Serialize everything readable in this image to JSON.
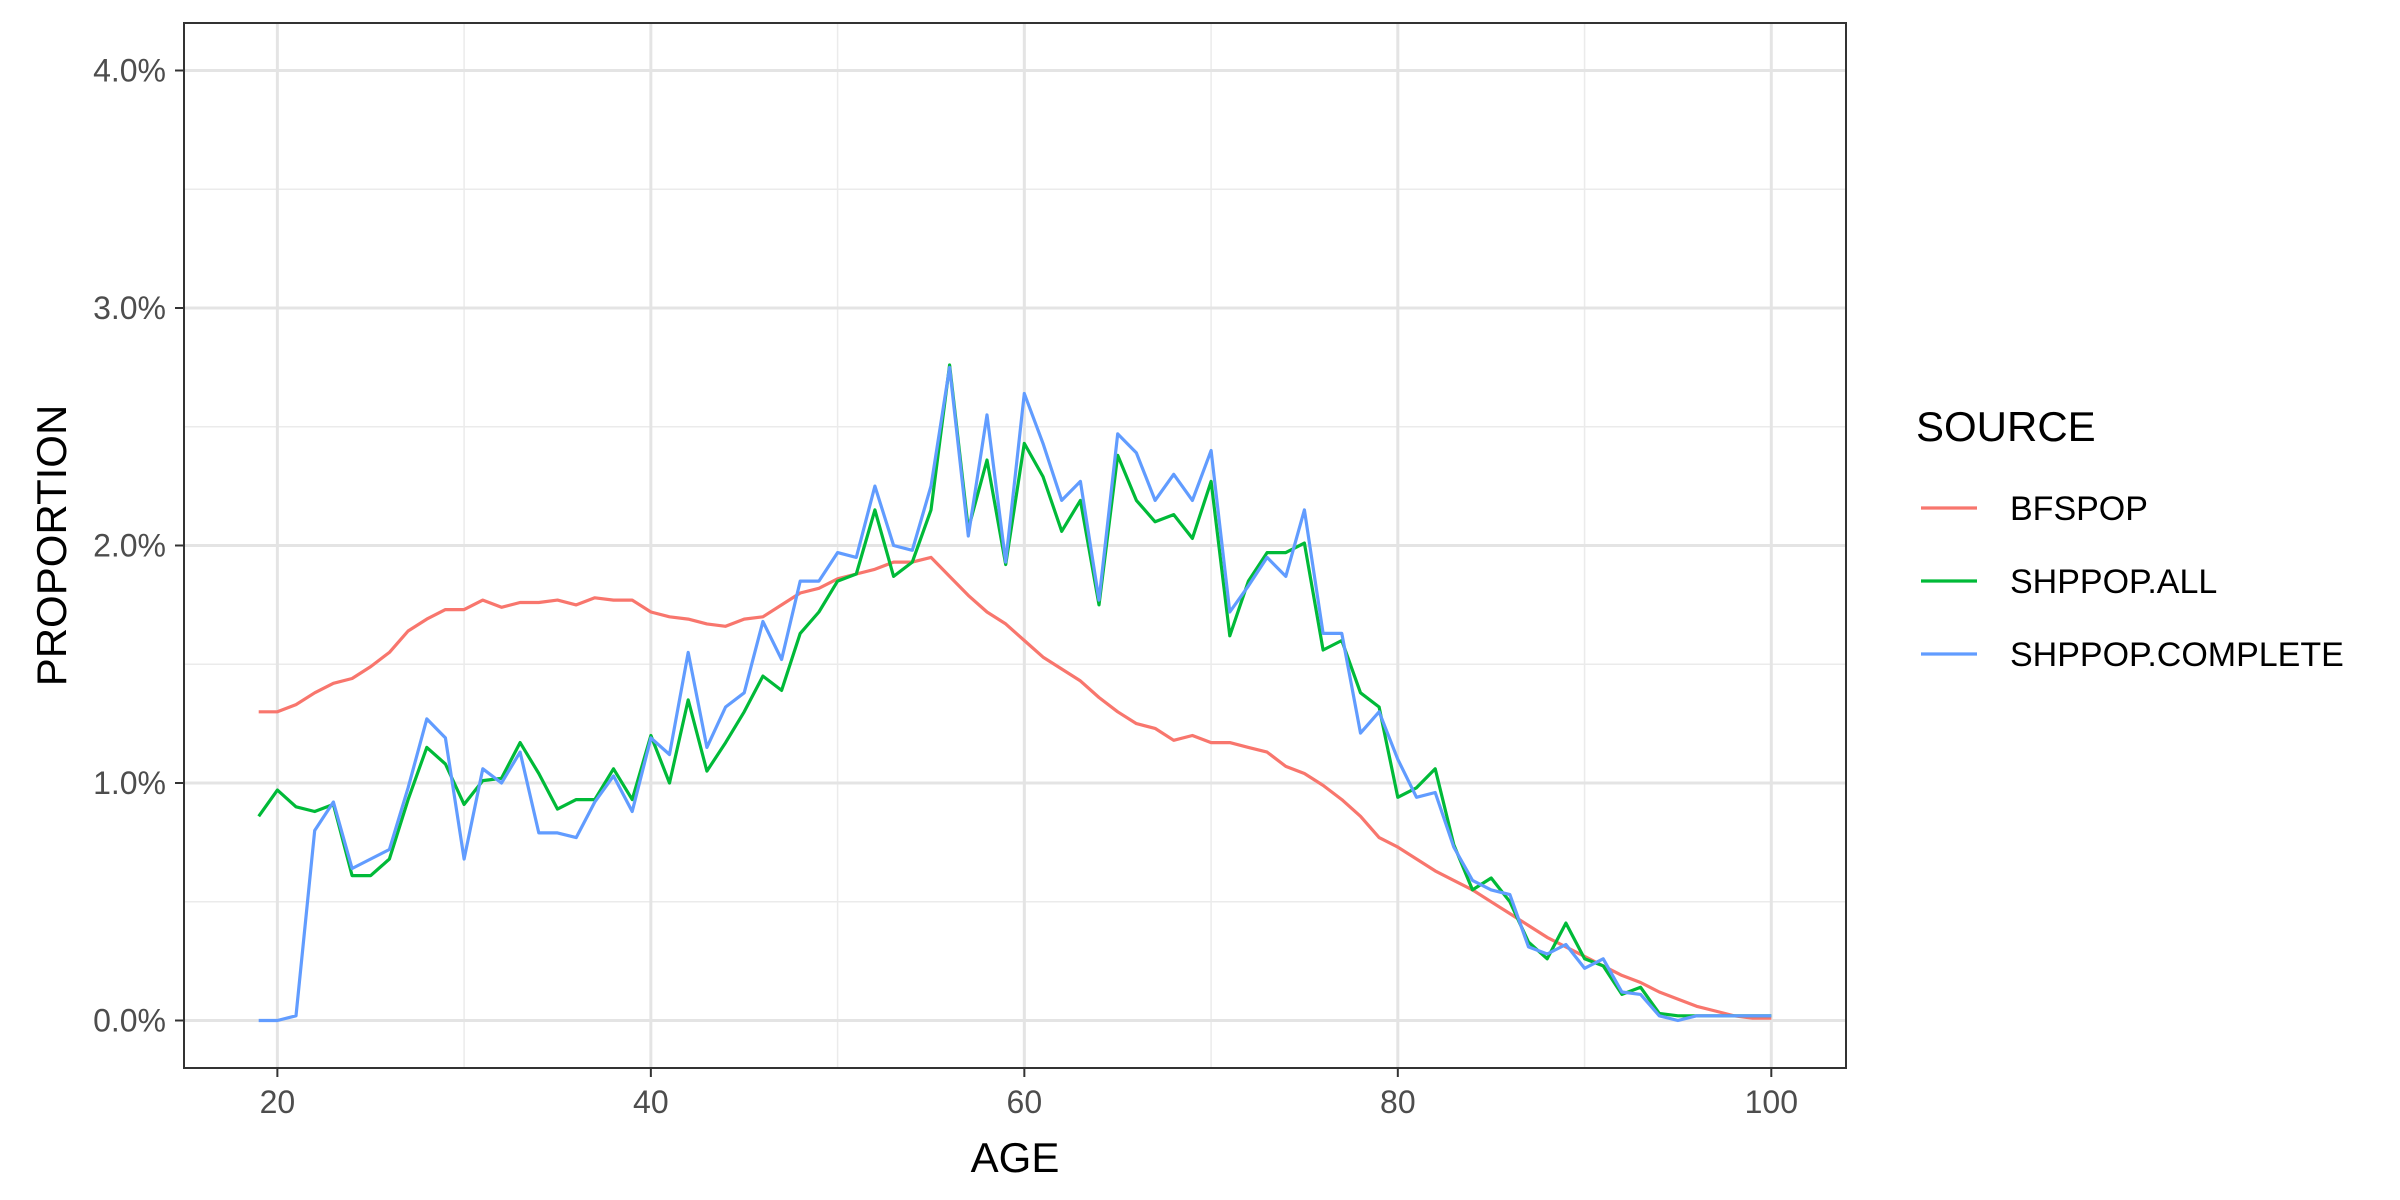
{
  "chart_data": {
    "type": "line",
    "xlabel": "AGE",
    "ylabel": "PROPORTION",
    "xlim": [
      15,
      104
    ],
    "ylim": [
      -0.2,
      4.2
    ],
    "x_ticks": [
      20,
      40,
      60,
      80,
      100
    ],
    "x_tick_labels": [
      "20",
      "40",
      "60",
      "80",
      "100"
    ],
    "y_ticks": [
      0,
      1,
      2,
      3,
      4
    ],
    "y_tick_labels": [
      "0.0%",
      "1.0%",
      "2.0%",
      "3.0%",
      "4.0%"
    ],
    "y_unit": "percent",
    "grid": true,
    "legend": {
      "title": "SOURCE",
      "position": "right"
    },
    "series": [
      {
        "name": "BFSPOP",
        "color": "#F8766D",
        "x": [
          19,
          20,
          21,
          22,
          23,
          24,
          25,
          26,
          27,
          28,
          29,
          30,
          31,
          32,
          33,
          34,
          35,
          36,
          37,
          38,
          39,
          40,
          41,
          42,
          43,
          44,
          45,
          46,
          47,
          48,
          49,
          50,
          51,
          52,
          53,
          54,
          55,
          56,
          57,
          58,
          59,
          60,
          61,
          62,
          63,
          64,
          65,
          66,
          67,
          68,
          69,
          70,
          71,
          72,
          73,
          74,
          75,
          76,
          77,
          78,
          79,
          80,
          81,
          82,
          83,
          84,
          85,
          86,
          87,
          88,
          89,
          90,
          91,
          92,
          93,
          94,
          95,
          96,
          97,
          98,
          99,
          100
        ],
        "values": [
          1.3,
          1.3,
          1.33,
          1.38,
          1.42,
          1.44,
          1.49,
          1.55,
          1.64,
          1.69,
          1.73,
          1.73,
          1.77,
          1.74,
          1.76,
          1.76,
          1.77,
          1.75,
          1.78,
          1.77,
          1.77,
          1.72,
          1.7,
          1.69,
          1.67,
          1.66,
          1.69,
          1.7,
          1.75,
          1.8,
          1.82,
          1.86,
          1.88,
          1.9,
          1.93,
          1.93,
          1.95,
          1.87,
          1.79,
          1.72,
          1.67,
          1.6,
          1.53,
          1.48,
          1.43,
          1.36,
          1.3,
          1.25,
          1.23,
          1.18,
          1.2,
          1.17,
          1.17,
          1.15,
          1.13,
          1.07,
          1.04,
          0.99,
          0.93,
          0.86,
          0.77,
          0.73,
          0.68,
          0.63,
          0.59,
          0.55,
          0.5,
          0.45,
          0.4,
          0.35,
          0.31,
          0.27,
          0.23,
          0.19,
          0.16,
          0.12,
          0.09,
          0.06,
          0.04,
          0.02,
          0.01,
          0.01
        ]
      },
      {
        "name": "SHPPOP.ALL",
        "color": "#00BA38",
        "x": [
          19,
          20,
          21,
          22,
          23,
          24,
          25,
          26,
          27,
          28,
          29,
          30,
          31,
          32,
          33,
          34,
          35,
          36,
          37,
          38,
          39,
          40,
          41,
          42,
          43,
          44,
          45,
          46,
          47,
          48,
          49,
          50,
          51,
          52,
          53,
          54,
          55,
          56,
          57,
          58,
          59,
          60,
          61,
          62,
          63,
          64,
          65,
          66,
          67,
          68,
          69,
          70,
          71,
          72,
          73,
          74,
          75,
          76,
          77,
          78,
          79,
          80,
          81,
          82,
          83,
          84,
          85,
          86,
          87,
          88,
          89,
          90,
          91,
          92,
          93,
          94,
          95,
          96,
          97,
          98,
          99,
          100
        ],
        "values": [
          0.86,
          0.97,
          0.9,
          0.88,
          0.91,
          0.61,
          0.61,
          0.68,
          0.93,
          1.15,
          1.08,
          0.91,
          1.01,
          1.02,
          1.17,
          1.04,
          0.89,
          0.93,
          0.93,
          1.06,
          0.93,
          1.2,
          1.0,
          1.35,
          1.05,
          1.17,
          1.3,
          1.45,
          1.39,
          1.63,
          1.72,
          1.85,
          1.88,
          2.15,
          1.87,
          1.93,
          2.15,
          2.76,
          2.07,
          2.36,
          1.92,
          2.43,
          2.29,
          2.06,
          2.19,
          1.75,
          2.38,
          2.19,
          2.1,
          2.13,
          2.03,
          2.27,
          1.62,
          1.85,
          1.97,
          1.97,
          2.01,
          1.56,
          1.6,
          1.38,
          1.32,
          0.94,
          0.98,
          1.06,
          0.74,
          0.55,
          0.6,
          0.5,
          0.33,
          0.26,
          0.41,
          0.26,
          0.23,
          0.11,
          0.14,
          0.03,
          0.02,
          0.02,
          0.02,
          0.02,
          0.02,
          0.02
        ]
      },
      {
        "name": "SHPPOP.COMPLETE",
        "color": "#619CFF",
        "x": [
          19,
          20,
          21,
          22,
          23,
          24,
          25,
          26,
          27,
          28,
          29,
          30,
          31,
          32,
          33,
          34,
          35,
          36,
          37,
          38,
          39,
          40,
          41,
          42,
          43,
          44,
          45,
          46,
          47,
          48,
          49,
          50,
          51,
          52,
          53,
          54,
          55,
          56,
          57,
          58,
          59,
          60,
          61,
          62,
          63,
          64,
          65,
          66,
          67,
          68,
          69,
          70,
          71,
          72,
          73,
          74,
          75,
          76,
          77,
          78,
          79,
          80,
          81,
          82,
          83,
          84,
          85,
          86,
          87,
          88,
          89,
          90,
          91,
          92,
          93,
          94,
          95,
          96,
          97,
          98,
          99,
          100
        ],
        "values": [
          0.0,
          0.0,
          0.02,
          0.8,
          0.92,
          0.64,
          0.68,
          0.72,
          0.98,
          1.27,
          1.19,
          0.68,
          1.06,
          1.0,
          1.13,
          0.79,
          0.79,
          0.77,
          0.92,
          1.03,
          0.88,
          1.19,
          1.12,
          1.55,
          1.15,
          1.32,
          1.38,
          1.68,
          1.52,
          1.85,
          1.85,
          1.97,
          1.95,
          2.25,
          2.0,
          1.98,
          2.25,
          2.75,
          2.04,
          2.55,
          1.93,
          2.64,
          2.43,
          2.19,
          2.27,
          1.77,
          2.47,
          2.39,
          2.19,
          2.3,
          2.19,
          2.4,
          1.72,
          1.83,
          1.95,
          1.87,
          2.15,
          1.63,
          1.63,
          1.21,
          1.3,
          1.1,
          0.94,
          0.96,
          0.73,
          0.59,
          0.55,
          0.53,
          0.31,
          0.28,
          0.32,
          0.22,
          0.26,
          0.12,
          0.11,
          0.02,
          0.0,
          0.02,
          0.02,
          0.02,
          0.02,
          0.02
        ]
      }
    ]
  }
}
